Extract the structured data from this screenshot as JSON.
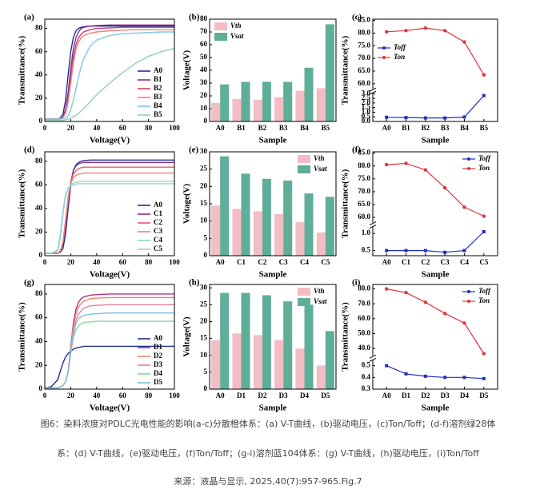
{
  "chart_data": [
    {
      "type": "line",
      "panel": "(a)",
      "xlabel": "Voltage(V)",
      "ylabel": "Transmittance(%)",
      "legend": "lower right",
      "xlim": [
        0,
        100
      ],
      "xticks": [
        0,
        20,
        40,
        60,
        80,
        100
      ],
      "ylim": [
        0,
        88
      ],
      "yticks": [
        0,
        20,
        40,
        60,
        80
      ],
      "x": [
        0,
        5,
        10,
        12,
        14,
        16,
        18,
        20,
        22,
        24,
        26,
        28,
        30,
        35,
        40,
        50,
        60,
        70,
        80,
        90,
        100
      ],
      "series": [
        {
          "name": "A0",
          "color": "#1f2f8f",
          "values": [
            2,
            2,
            2,
            3,
            6,
            18,
            40,
            60,
            72,
            78,
            80,
            81,
            81.5,
            82,
            82,
            82,
            82,
            82,
            82,
            82,
            82
          ]
        },
        {
          "name": "B1",
          "color": "#8b2a8b",
          "values": [
            2,
            2,
            2,
            2.5,
            4,
            10,
            25,
            45,
            62,
            72,
            77,
            80,
            81,
            82,
            82.5,
            83,
            83,
            83,
            83,
            83,
            83
          ]
        },
        {
          "name": "B2",
          "color": "#d2387a",
          "values": [
            2,
            2,
            2,
            2.5,
            3.5,
            8,
            20,
            38,
            55,
            66,
            72,
            75,
            77,
            79,
            80,
            80.5,
            81,
            81,
            81,
            81,
            81
          ]
        },
        {
          "name": "B3",
          "color": "#f08070",
          "values": [
            2,
            2,
            2,
            2.5,
            3.5,
            7,
            17,
            33,
            50,
            62,
            68,
            72,
            74,
            76,
            77,
            78,
            78.5,
            79,
            79,
            79,
            79
          ]
        },
        {
          "name": "B4",
          "color": "#7ec8e3",
          "values": [
            2,
            2,
            2,
            2,
            2.5,
            3,
            5,
            10,
            18,
            28,
            38,
            47,
            54,
            65,
            70,
            74,
            75.5,
            76,
            76.5,
            77,
            77
          ]
        },
        {
          "name": "B5",
          "color": "#8fd0b0",
          "values": [
            1,
            1,
            1,
            1,
            1,
            1.5,
            2,
            3,
            4,
            5,
            7,
            9,
            11,
            17,
            23,
            33,
            42,
            50,
            56,
            60,
            63
          ]
        }
      ]
    },
    {
      "type": "bar",
      "panel": "(b)",
      "xlabel": "Sample",
      "ylabel": "Voltage(V)",
      "legend": "upper left",
      "categories": [
        "A0",
        "B1",
        "B2",
        "B3",
        "B4",
        "B5"
      ],
      "ylim": [
        0,
        80
      ],
      "yticks": [
        0,
        10,
        20,
        30,
        40,
        50,
        60,
        70,
        80
      ],
      "series": [
        {
          "name": "Vth",
          "color": "#f4bcc4",
          "values": [
            14.5,
            17.5,
            17,
            19,
            24,
            26
          ]
        },
        {
          "name": "Vsat",
          "color": "#5fae9a",
          "values": [
            29,
            31,
            31,
            31,
            42,
            76
          ]
        }
      ]
    },
    {
      "type": "broken_line",
      "panel": "(c)",
      "xlabel": "Sample",
      "ylabel": "Transmittance(%)",
      "legend": "upper left",
      "categories": [
        "A0",
        "B1",
        "B2",
        "B3",
        "B4",
        "B5"
      ],
      "segments": [
        {
          "ylim": [
            0,
            3.1
          ],
          "yticks": [
            {
              "value": 0,
              "label": "0.0"
            },
            0.5,
            {
              "value": 1,
              "label": "1.0"
            },
            1.5,
            {
              "value": 2,
              "label": "2.0"
            },
            2.5,
            {
              "value": 3,
              "label": "3.0"
            }
          ]
        },
        {
          "ylim": [
            58,
            85.5
          ],
          "yticks": [
            {
              "value": 60,
              "label": "60.0"
            },
            {
              "value": 65,
              "label": "65.0"
            },
            {
              "value": 70,
              "label": "70.0"
            },
            {
              "value": 75,
              "label": "75.0"
            },
            {
              "value": 80,
              "label": "80.0"
            },
            {
              "value": 85,
              "label": "85.0"
            }
          ]
        }
      ],
      "series": [
        {
          "name": "Toff",
          "color": "#1f2fbf",
          "values": [
            0.45,
            0.42,
            0.38,
            0.38,
            0.48,
            2.8
          ]
        },
        {
          "name": "Ton",
          "color": "#e0343a",
          "values": [
            80.5,
            81,
            82,
            81,
            76.5,
            63.5
          ]
        }
      ]
    },
    {
      "type": "line",
      "panel": "(d)",
      "xlabel": "Voltage(V)",
      "ylabel": "Transmittance(%)",
      "legend": "lower right",
      "xlim": [
        0,
        100
      ],
      "xticks": [
        0,
        20,
        40,
        60,
        80,
        100
      ],
      "ylim": [
        0,
        88
      ],
      "yticks": [
        0,
        20,
        40,
        60,
        80
      ],
      "x": [
        0,
        5,
        10,
        12,
        14,
        16,
        18,
        20,
        22,
        24,
        26,
        28,
        30,
        35,
        40,
        50,
        60,
        70,
        80,
        90,
        100
      ],
      "series": [
        {
          "name": "A0",
          "color": "#1f2f8f",
          "values": [
            2,
            2,
            2,
            3,
            6,
            18,
            40,
            60,
            72,
            77,
            79,
            80,
            80.5,
            81,
            81,
            81,
            81,
            81,
            81,
            81,
            81
          ]
        },
        {
          "name": "C1",
          "color": "#8b2a8b",
          "values": [
            2,
            2,
            2,
            4,
            10,
            25,
            45,
            62,
            72,
            76,
            78,
            78.5,
            79,
            79,
            79,
            79,
            79,
            79,
            79,
            79,
            79
          ]
        },
        {
          "name": "C2",
          "color": "#e05a7a",
          "values": [
            2,
            2,
            2,
            4,
            11,
            28,
            48,
            62,
            69,
            72,
            73.5,
            74.5,
            75,
            75,
            75,
            75,
            75,
            75,
            75,
            75,
            75
          ]
        },
        {
          "name": "C3",
          "color": "#f08070",
          "values": [
            2,
            2,
            2,
            4,
            12,
            30,
            50,
            61,
            66,
            68,
            69,
            69.5,
            70,
            70,
            70,
            70,
            70,
            70,
            70,
            70,
            70
          ]
        },
        {
          "name": "C4",
          "color": "#9ad8b8",
          "values": [
            2,
            2,
            4,
            15,
            35,
            50,
            57,
            60,
            61.5,
            62,
            62.5,
            63,
            63,
            63,
            63,
            63,
            63,
            63,
            63,
            63,
            63
          ]
        },
        {
          "name": "C5",
          "color": "#8ecfe8",
          "values": [
            2,
            2,
            5,
            18,
            38,
            52,
            57,
            59,
            60,
            60.5,
            61,
            61,
            61,
            61,
            61,
            61,
            61,
            61,
            61,
            61,
            61
          ]
        }
      ]
    },
    {
      "type": "bar",
      "panel": "(e)",
      "xlabel": "Sample",
      "ylabel": "Voltage(V)",
      "legend": "upper right",
      "categories": [
        "A0",
        "C1",
        "C2",
        "C3",
        "C4",
        "C5"
      ],
      "ylim": [
        0,
        30
      ],
      "yticks": [
        0,
        5,
        10,
        15,
        20,
        25,
        30
      ],
      "series": [
        {
          "name": "Vth",
          "color": "#f4bcc4",
          "values": [
            14.5,
            13.5,
            12.8,
            12,
            9.7,
            6.7
          ]
        },
        {
          "name": "Vsat",
          "color": "#5fae9a",
          "values": [
            28.7,
            23.7,
            22.2,
            21.7,
            18,
            17
          ]
        }
      ]
    },
    {
      "type": "broken_line",
      "panel": "(f)",
      "xlabel": "Sample",
      "ylabel": "Transmittance(%)",
      "legend": "upper right",
      "categories": [
        "A0",
        "C1",
        "C2",
        "C3",
        "C4",
        "C5"
      ],
      "segments": [
        {
          "ylim": [
            0.35,
            1.2
          ],
          "yticks": [
            0.5,
            {
              "value": 1,
              "label": "1.0"
            }
          ]
        },
        {
          "ylim": [
            58,
            85.5
          ],
          "yticks": [
            {
              "value": 60,
              "label": "60.0"
            },
            {
              "value": 65,
              "label": "65.0"
            },
            {
              "value": 70,
              "label": "70.0"
            },
            {
              "value": 75,
              "label": "75.0"
            },
            {
              "value": 80,
              "label": "80.0"
            },
            {
              "value": 85,
              "label": "85.0"
            }
          ]
        }
      ],
      "series": [
        {
          "name": "Toff",
          "color": "#1f2fbf",
          "values": [
            0.5,
            0.5,
            0.5,
            0.45,
            0.5,
            1.05
          ]
        },
        {
          "name": "Ton",
          "color": "#e0343a",
          "values": [
            80.5,
            81,
            78.5,
            71.5,
            64,
            60.5
          ]
        }
      ]
    },
    {
      "type": "line",
      "panel": "(g)",
      "xlabel": "Voltage(V)",
      "ylabel": "Transmittance(%)",
      "legend": "lower right",
      "xlim": [
        0,
        100
      ],
      "xticks": [
        0,
        20,
        40,
        60,
        80,
        100
      ],
      "ylim": [
        0,
        88
      ],
      "yticks": [
        0,
        20,
        40,
        60,
        80
      ],
      "x": [
        0,
        5,
        10,
        12,
        14,
        16,
        18,
        20,
        22,
        24,
        26,
        28,
        30,
        35,
        40,
        50,
        60,
        70,
        80,
        90,
        100
      ],
      "series": [
        {
          "name": "A0",
          "color": "#1f2f8f",
          "values": [
            1,
            2,
            8,
            15,
            22,
            27,
            30,
            32,
            33.5,
            34.5,
            35,
            35.5,
            36,
            36,
            36,
            36,
            36,
            36,
            36,
            36,
            36
          ]
        },
        {
          "name": "D1",
          "color": "#b0307a",
          "values": [
            1,
            1,
            1,
            2,
            3,
            6,
            15,
            35,
            55,
            67,
            73,
            76,
            77.5,
            79,
            79.5,
            80,
            80,
            80,
            80,
            80,
            80
          ]
        },
        {
          "name": "D2",
          "color": "#f08070",
          "values": [
            1,
            1,
            1,
            2,
            3,
            6,
            14,
            33,
            52,
            63,
            69,
            72,
            74,
            76,
            76.5,
            77,
            77,
            77,
            77,
            77,
            77
          ]
        },
        {
          "name": "D3",
          "color": "#e8809a",
          "values": [
            1,
            1,
            1,
            2,
            3,
            6,
            14,
            31,
            48,
            58,
            63,
            66,
            68,
            70,
            70.5,
            71,
            71,
            71,
            71,
            71,
            71
          ]
        },
        {
          "name": "D4",
          "color": "#8fd0a0",
          "values": [
            1,
            1,
            1,
            2,
            3,
            6,
            14,
            30,
            43,
            50,
            53,
            55,
            56,
            56.5,
            57,
            57,
            57,
            57,
            57,
            57,
            57
          ]
        },
        {
          "name": "D5",
          "color": "#7ec0e0",
          "values": [
            1,
            1,
            1,
            2,
            3,
            6,
            14,
            31,
            46,
            55,
            59,
            61,
            62,
            63,
            63.5,
            64,
            64,
            64,
            64,
            64,
            64
          ]
        }
      ]
    },
    {
      "type": "bar",
      "panel": "(h)",
      "xlabel": "Sample",
      "ylabel": "Voltage(V)",
      "legend": "upper right",
      "categories": [
        "A0",
        "D1",
        "D2",
        "D3",
        "D4",
        "D5"
      ],
      "ylim": [
        0,
        31
      ],
      "yticks": [
        0,
        5,
        10,
        15,
        20,
        25,
        30
      ],
      "series": [
        {
          "name": "Vth",
          "color": "#f4bcc4",
          "values": [
            14.5,
            16.5,
            16,
            14.5,
            12,
            7
          ]
        },
        {
          "name": "Vsat",
          "color": "#5fae9a",
          "values": [
            28.5,
            28.5,
            27.8,
            26,
            25,
            17.2
          ]
        }
      ]
    },
    {
      "type": "broken_line",
      "panel": "(i)",
      "xlabel": "Sample",
      "ylabel": "Transmittance(%)",
      "legend": "upper right",
      "categories": [
        "A0",
        "D1",
        "D2",
        "D3",
        "D4",
        "D5"
      ],
      "segments": [
        {
          "ylim": [
            0.3,
            0.55
          ],
          "yticks": [
            0.3,
            0.4,
            0.5
          ]
        },
        {
          "ylim": [
            35,
            83
          ],
          "yticks": [
            {
              "value": 40,
              "label": "40.0"
            },
            {
              "value": 50,
              "label": "50.0"
            },
            {
              "value": 60,
              "label": "60.0"
            },
            {
              "value": 70,
              "label": "70.0"
            },
            {
              "value": 80,
              "label": "80.0"
            }
          ]
        }
      ],
      "series": [
        {
          "name": "Toff",
          "color": "#1f2fbf",
          "values": [
            0.5,
            0.43,
            0.41,
            0.4,
            0.4,
            0.39
          ]
        },
        {
          "name": "Ton",
          "color": "#e0343a",
          "values": [
            80,
            77.5,
            71,
            63.5,
            57,
            36.5
          ]
        }
      ]
    }
  ],
  "caption": [
    "图6：染料浓度对PDLC光电性能的影响(a-c)分散橙体系：(a) V-T曲线，(b)驱动电压，(c)Ton/Toff；(d-f)溶剂绿28体",
    "系：(d) V-T曲线，(e)驱动电压，(f)Ton/Toff；(g-i)溶剂蓝104体系：(g) V-T曲线，(h)驱动电压，(i)Ton/Toff",
    "来源：液晶与显示, 2025,40(7):957-965.Fig.7"
  ]
}
